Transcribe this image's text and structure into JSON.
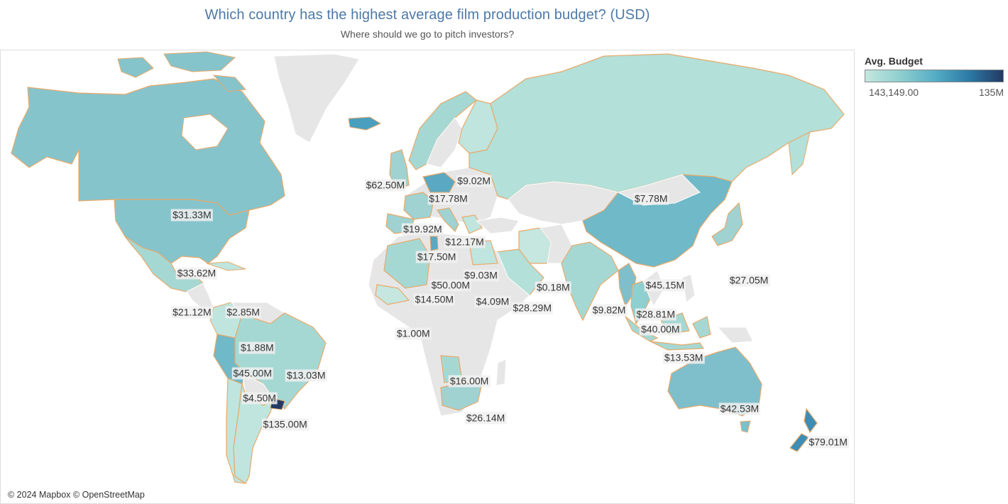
{
  "header": {
    "title": "Which country has the highest average film production budget? (USD)",
    "subtitle": "Where should we go to pitch investors?"
  },
  "legend": {
    "title": "Avg. Budget",
    "min_label": "143,149.00",
    "max_label": "135M",
    "colors": [
      "#c5e7df",
      "#8fcfcf",
      "#56aec5",
      "#2c7ba8",
      "#223a63"
    ]
  },
  "map": {
    "attribution": "© 2024 Mapbox © OpenStreetMap",
    "no_data_color": "#e6e6e6",
    "border_color": "#e8a96a",
    "labels": [
      {
        "country": "Canada",
        "text": "$31.33M",
        "lon": -101,
        "lat": 58
      },
      {
        "country": "United States",
        "text": "$33.62M",
        "lon": -99,
        "lat": 39
      },
      {
        "country": "Mexico",
        "text": "$21.12M",
        "lon": -101,
        "lat": 22
      },
      {
        "country": "Cuba",
        "text": "$2.85M",
        "lon": -79,
        "lat": 22
      },
      {
        "country": "Colombia",
        "text": "$1.88M",
        "lon": -73,
        "lat": 5
      },
      {
        "country": "Peru",
        "text": "$45.00M",
        "lon": -75,
        "lat": -8
      },
      {
        "country": "Brazil",
        "text": "$13.03M",
        "lon": -52,
        "lat": -9
      },
      {
        "country": "Chile",
        "text": "$4.50M",
        "lon": -72,
        "lat": -20
      },
      {
        "country": "Uruguay",
        "text": "$135.00M",
        "lon": -61,
        "lat": -32
      },
      {
        "country": "Iceland",
        "text": "$62.50M",
        "lon": -18,
        "lat": 65
      },
      {
        "country": "Norway",
        "text": "$17.78M",
        "lon": 9,
        "lat": 62
      },
      {
        "country": "Finland",
        "text": "$9.02M",
        "lon": 20,
        "lat": 66
      },
      {
        "country": "United Kingdom",
        "text": "$19.92M",
        "lon": -2,
        "lat": 54
      },
      {
        "country": "Czechia",
        "text": "$12.17M",
        "lon": 16,
        "lat": 50
      },
      {
        "country": "France",
        "text": "$17.50M",
        "lon": 4,
        "lat": 45
      },
      {
        "country": "Greece",
        "text": "$9.03M",
        "lon": 23,
        "lat": 38
      },
      {
        "country": "Tunisia",
        "text": "$50.00M",
        "lon": 10,
        "lat": 34
      },
      {
        "country": "Algeria",
        "text": "$14.50M",
        "lon": 3,
        "lat": 28
      },
      {
        "country": "Egypt",
        "text": "$4.09M",
        "lon": 28,
        "lat": 27
      },
      {
        "country": "Iran",
        "text": "$0.18M",
        "lon": 54,
        "lat": 33
      },
      {
        "country": "Saudi Arabia",
        "text": "$28.29M",
        "lon": 45,
        "lat": 24
      },
      {
        "country": "India",
        "text": "$9.82M",
        "lon": 78,
        "lat": 23
      },
      {
        "country": "Senegal",
        "text": "$1.00M",
        "lon": -6,
        "lat": 12
      },
      {
        "country": "Angola",
        "text": "$16.00M",
        "lon": 18,
        "lat": -12
      },
      {
        "country": "South Africa",
        "text": "$26.14M",
        "lon": 25,
        "lat": -29
      },
      {
        "country": "Russia",
        "text": "$7.78M",
        "lon": 96,
        "lat": 62
      },
      {
        "country": "China",
        "text": "$45.15M",
        "lon": 102,
        "lat": 34
      },
      {
        "country": "Japan",
        "text": "$27.05M",
        "lon": 138,
        "lat": 36
      },
      {
        "country": "Myanmar",
        "text": "$28.81M",
        "lon": 98,
        "lat": 21
      },
      {
        "country": "Thailand",
        "text": "$40.00M",
        "lon": 100,
        "lat": 14
      },
      {
        "country": "Indonesia",
        "text": "$13.53M",
        "lon": 110,
        "lat": 0
      },
      {
        "country": "Australia",
        "text": "$42.53M",
        "lon": 134,
        "lat": -25
      },
      {
        "country": "New Zealand",
        "text": "$79.01M",
        "lon": 172,
        "lat": -39
      }
    ]
  },
  "chart_data": {
    "type": "choropleth",
    "measure": "Avg. Budget",
    "range": [
      143149,
      135000000
    ],
    "regions": [
      {
        "name": "Uruguay",
        "value": 135000000
      },
      {
        "name": "New Zealand",
        "value": 79010000
      },
      {
        "name": "Iceland",
        "value": 62500000
      },
      {
        "name": "Tunisia",
        "value": 50000000
      },
      {
        "name": "China",
        "value": 45150000
      },
      {
        "name": "Peru",
        "value": 45000000
      },
      {
        "name": "Australia",
        "value": 42530000
      },
      {
        "name": "Thailand",
        "value": 40000000
      },
      {
        "name": "United States",
        "value": 33620000
      },
      {
        "name": "Canada",
        "value": 31330000
      },
      {
        "name": "Myanmar",
        "value": 28810000
      },
      {
        "name": "Saudi Arabia",
        "value": 28290000
      },
      {
        "name": "Japan",
        "value": 27050000
      },
      {
        "name": "South Africa",
        "value": 26140000
      },
      {
        "name": "Mexico",
        "value": 21120000
      },
      {
        "name": "United Kingdom",
        "value": 19920000
      },
      {
        "name": "Norway",
        "value": 17780000
      },
      {
        "name": "France",
        "value": 17500000
      },
      {
        "name": "Angola",
        "value": 16000000
      },
      {
        "name": "Algeria",
        "value": 14500000
      },
      {
        "name": "Indonesia",
        "value": 13530000
      },
      {
        "name": "Brazil",
        "value": 13030000
      },
      {
        "name": "Czechia",
        "value": 12170000
      },
      {
        "name": "India",
        "value": 9820000
      },
      {
        "name": "Greece",
        "value": 9030000
      },
      {
        "name": "Finland",
        "value": 9020000
      },
      {
        "name": "Russia",
        "value": 7780000
      },
      {
        "name": "Chile",
        "value": 4500000
      },
      {
        "name": "Egypt",
        "value": 4090000
      },
      {
        "name": "Cuba",
        "value": 2850000
      },
      {
        "name": "Colombia",
        "value": 1880000
      },
      {
        "name": "Senegal",
        "value": 1000000
      },
      {
        "name": "Iran",
        "value": 180000
      }
    ]
  }
}
